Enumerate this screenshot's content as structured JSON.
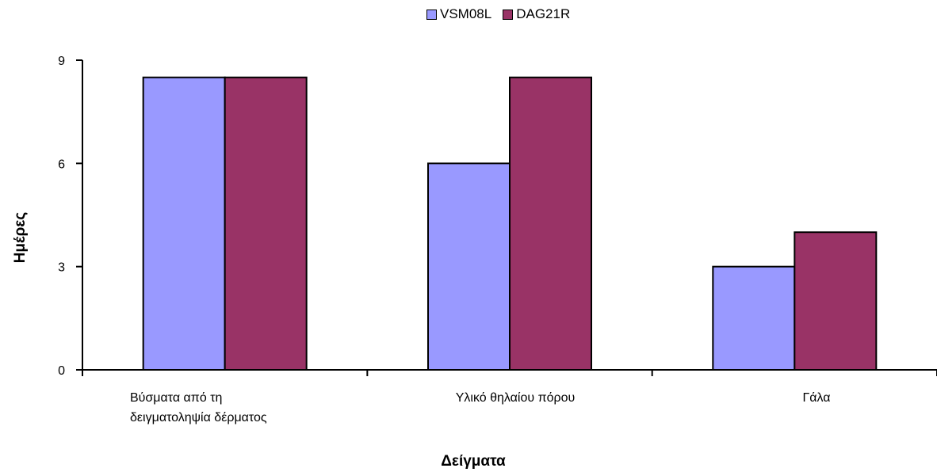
{
  "chart_data": {
    "type": "bar",
    "title": "",
    "xlabel": "Δείγματα",
    "ylabel": "Ημέρες",
    "categories": [
      [
        "Βύσματα από τη",
        "δειγματοληψία δέρματος"
      ],
      [
        "Υλικό θηλαίου πόρου"
      ],
      [
        "Γάλα"
      ]
    ],
    "series": [
      {
        "name": "VSM08L",
        "color": "#9999ff",
        "values": [
          8.5,
          6,
          3
        ]
      },
      {
        "name": "DAG21R",
        "color": "#993366",
        "values": [
          8.5,
          8.5,
          4
        ]
      }
    ],
    "ylim": [
      0,
      9
    ],
    "yticks": [
      "0",
      "3",
      "6",
      "9"
    ],
    "legend_position": "top-center",
    "grid": false
  }
}
